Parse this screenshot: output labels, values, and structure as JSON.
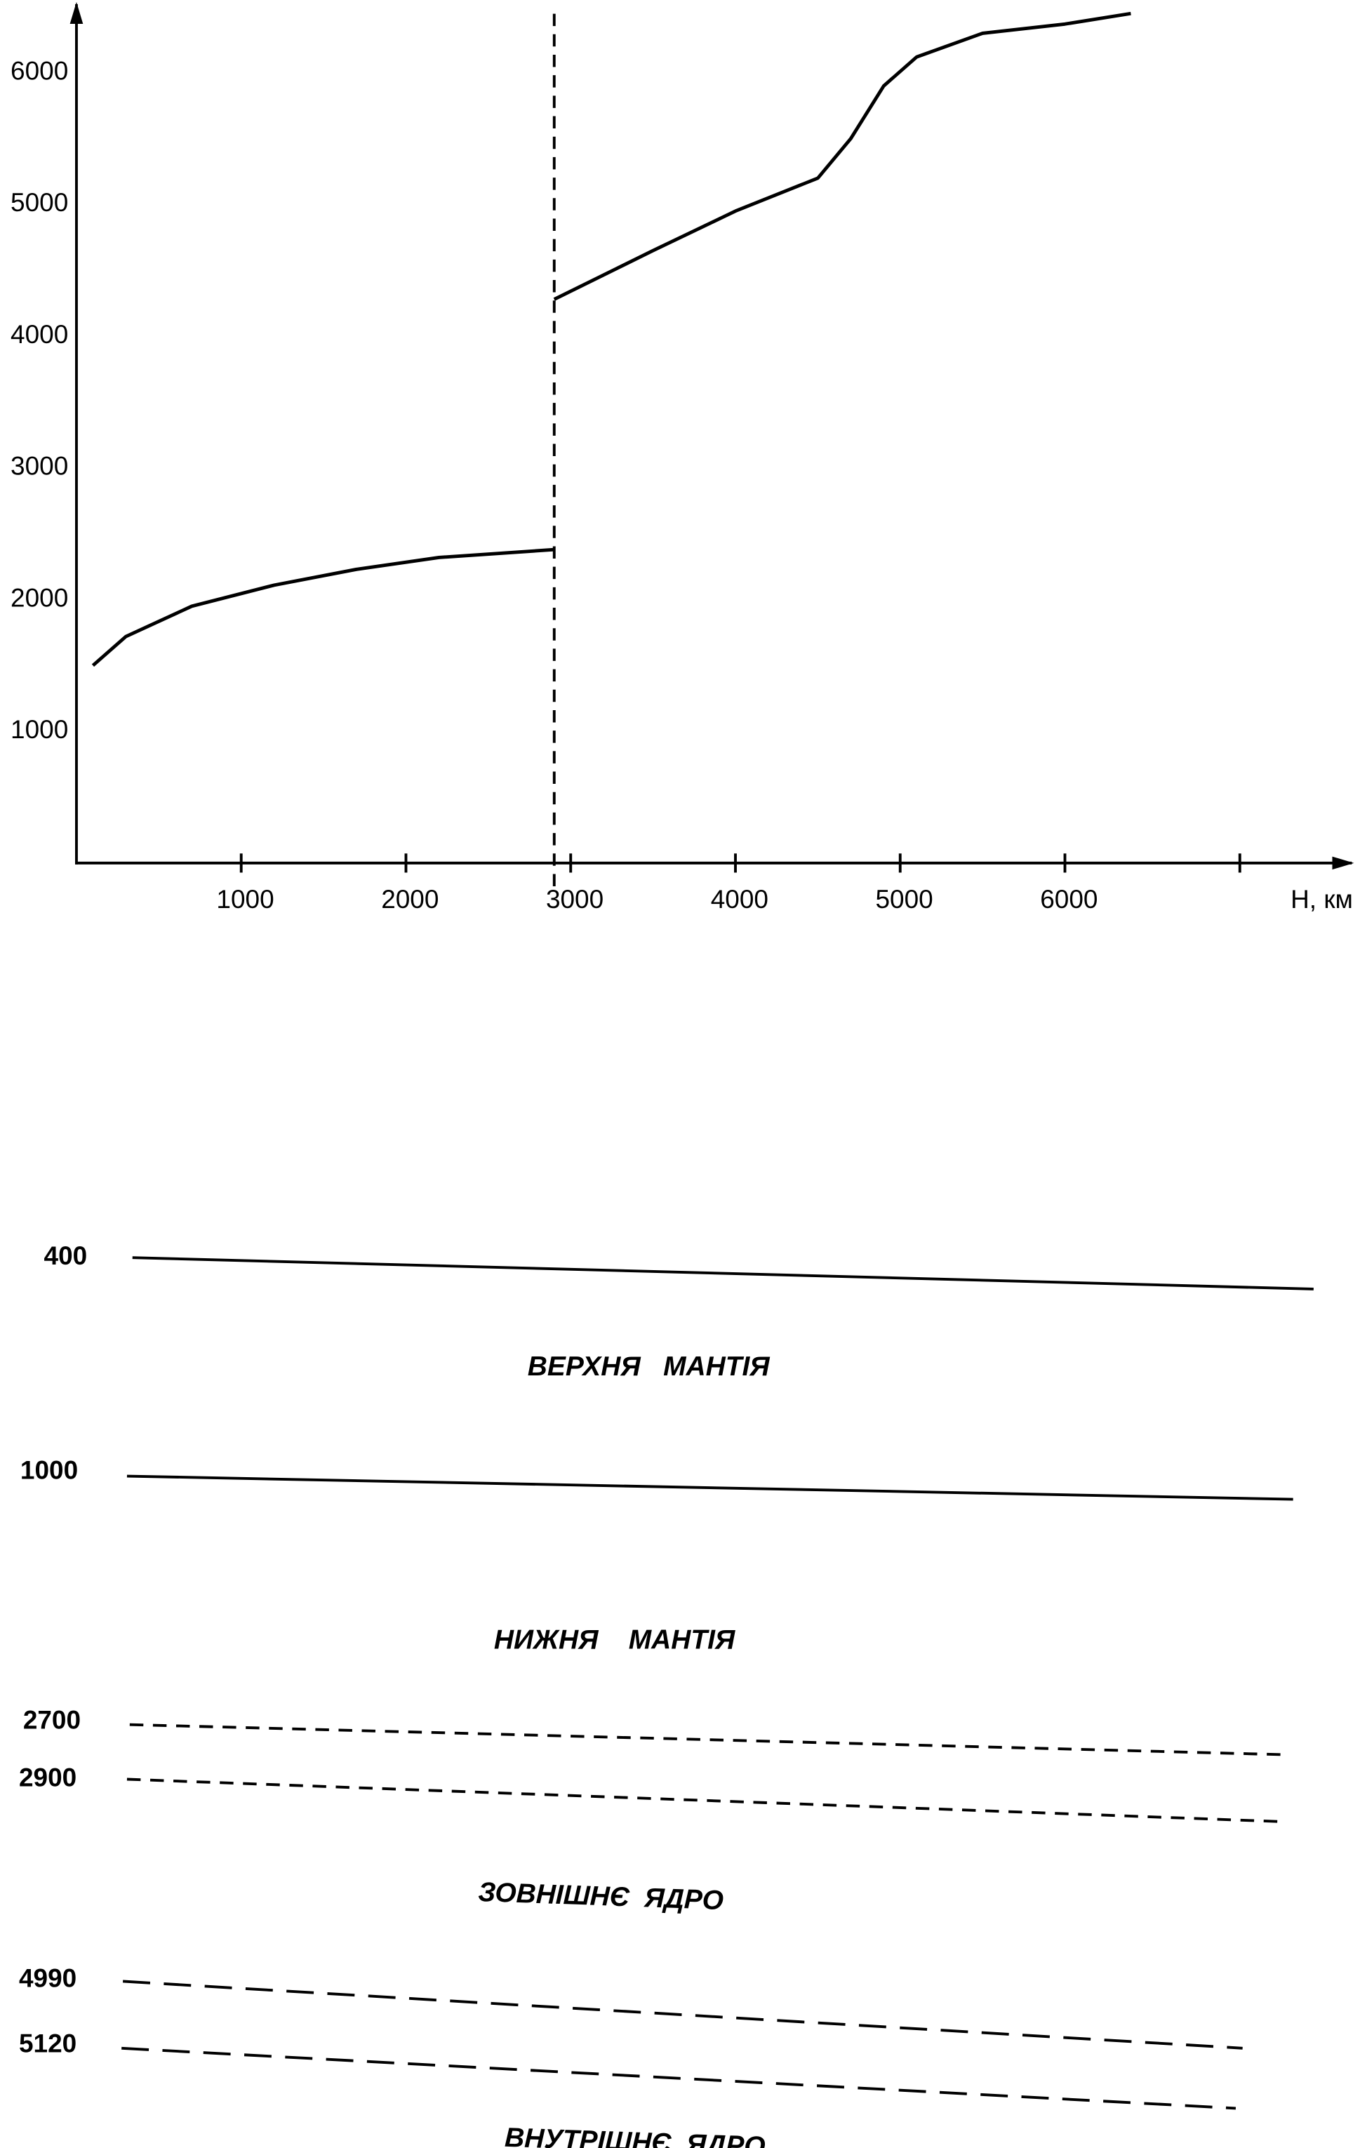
{
  "chart_data": {
    "type": "line",
    "x": [
      100,
      300,
      700,
      1200,
      1700,
      2200,
      2900,
      2900,
      2900,
      3500,
      4000,
      4500,
      4700,
      4900,
      5100,
      5500,
      6000,
      6400
    ],
    "values": [
      1500,
      1720,
      1950,
      2110,
      2230,
      2320,
      2380,
      null,
      4280,
      4650,
      4950,
      5200,
      5500,
      5900,
      6120,
      6300,
      6370,
      6450
    ],
    "color": "#000000",
    "x_label": "H, км",
    "xlim": [
      0,
      7700
    ],
    "xticks": [
      1000,
      2000,
      3000,
      4000,
      5000,
      6000
    ],
    "ylim": [
      0,
      6500
    ],
    "yticks": [
      1000,
      2000,
      3000,
      4000,
      5000,
      6000
    ],
    "vline_x": 2900,
    "grid": false
  },
  "layers_diagram": {
    "boundaries": [
      {
        "depth": 400,
        "style": "solid"
      },
      {
        "depth": 1000,
        "style": "solid"
      },
      {
        "depth": 2700,
        "style": "dashed"
      },
      {
        "depth": 2900,
        "style": "dashed"
      },
      {
        "depth": 4990,
        "style": "long-dashed"
      },
      {
        "depth": 5120,
        "style": "long-dashed"
      }
    ],
    "layers": [
      "ВЕРХНЯ   МАНТІЯ",
      "НИЖНЯ    МАНТІЯ",
      "ЗОВНІШНЄ  ЯДРО",
      "ВНУТРІШНЄ  ЯДРО"
    ]
  }
}
